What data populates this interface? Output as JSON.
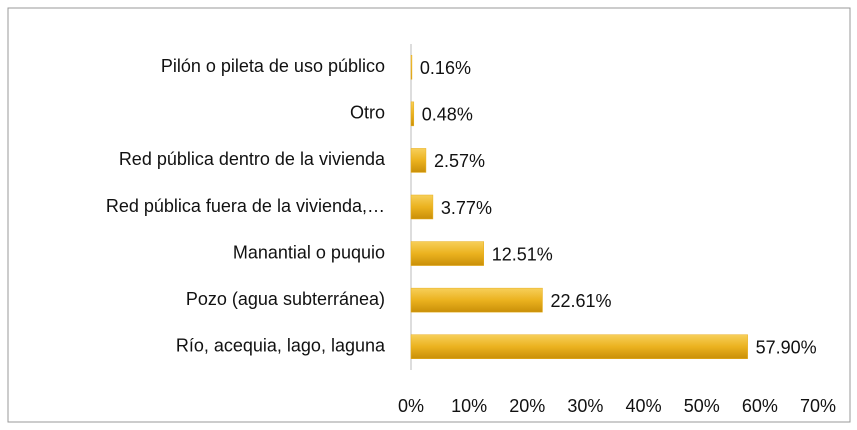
{
  "chart_data": {
    "type": "bar",
    "orientation": "horizontal",
    "categories": [
      "Pilón o pileta de uso público",
      "Otro",
      "Red pública dentro de la vivienda",
      "Red pública fuera de la vivienda,…",
      "Manantial o puquio",
      "Pozo (agua subterránea)",
      "Río, acequia, lago, laguna"
    ],
    "values": [
      0.16,
      0.48,
      2.57,
      3.77,
      12.51,
      22.61,
      57.9
    ],
    "value_labels": [
      "0.16%",
      "0.48%",
      "2.57%",
      "3.77%",
      "12.51%",
      "22.61%",
      "57.90%"
    ],
    "color": "#e8ae1c",
    "xlim": [
      0,
      70
    ],
    "xticks": [
      {
        "value": 0,
        "label": "0%"
      },
      {
        "value": 10,
        "label": "10%"
      },
      {
        "value": 20,
        "label": "20%"
      },
      {
        "value": 30,
        "label": "30%"
      },
      {
        "value": 40,
        "label": "40%"
      },
      {
        "value": 50,
        "label": "50%"
      },
      {
        "value": 60,
        "label": "60%"
      },
      {
        "value": 70,
        "label": "70%"
      }
    ],
    "grid": false
  }
}
